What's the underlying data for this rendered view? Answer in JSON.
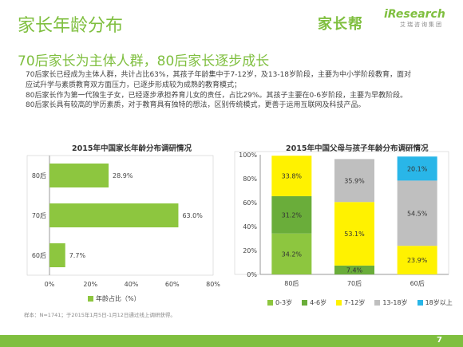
{
  "header": {
    "title": "家长年龄分布",
    "subtitle": "70后家长为主体人群，80后家长逐步成长",
    "logo_brand": "家长帮",
    "logo_ir": "iResearch",
    "logo_ir_sub": "艾瑞咨询集团"
  },
  "description": [
    "70后家长已经成为主体人群，共计占比63%，其孩子年龄集中于7-12岁，及13-18岁阶段，主要为中小学阶段教育，面对",
    "应试升学与素质教育双方面压力，已逐步形成较为成熟的教育模式；",
    "80后家长作为第一代独生子女，已经逐步承担养育儿女的责任，占比29%。其孩子主要在0-6岁阶段，主要为早教阶段。",
    "80后家长具有较高的学历素质，对于教育具有独特的想法，区别传统模式，更善于运用互联网及科技产品。"
  ],
  "footnote": "样本：N=1741；于2015年1月5日-1月12日通过线上调研获得。",
  "page_number": "7",
  "chart_data": [
    {
      "type": "bar",
      "orientation": "horizontal",
      "title": "2015年中国家长年龄分布调研情况",
      "categories": [
        "80后",
        "70后",
        "60后"
      ],
      "values": [
        28.9,
        63.0,
        7.7
      ],
      "value_labels": [
        "28.9%",
        "63.0%",
        "7.7%"
      ],
      "xlim": [
        0,
        80
      ],
      "xticks": [
        "0%",
        "20%",
        "40%",
        "60%",
        "80%"
      ],
      "series_name": "年龄占比（%）",
      "color": "#8dc63f"
    },
    {
      "type": "bar",
      "stacked": true,
      "title": "2015年中国父母与孩子年龄分布调研情况",
      "categories": [
        "80后",
        "70后",
        "60后"
      ],
      "yticks": [
        "0%",
        "20%",
        "40%",
        "60%",
        "80%",
        "100%"
      ],
      "ylim": [
        0,
        100
      ],
      "series": [
        {
          "name": "0-3岁",
          "color": "#8dc63f",
          "values": [
            34.2,
            0,
            0
          ],
          "labels": [
            "34.2%",
            "",
            ""
          ]
        },
        {
          "name": "4-6岁",
          "color": "#6aad3a",
          "values": [
            31.2,
            7.4,
            0
          ],
          "labels": [
            "31.2%",
            "7.4%",
            ""
          ]
        },
        {
          "name": "7-12岁",
          "color": "#fff200",
          "values": [
            33.8,
            53.1,
            23.9
          ],
          "labels": [
            "33.8%",
            "53.1%",
            "23.9%"
          ]
        },
        {
          "name": "13-18岁",
          "color": "#bfbfbf",
          "values": [
            0,
            35.9,
            54.5
          ],
          "labels": [
            "",
            "35.9%",
            "54.5%"
          ]
        },
        {
          "name": "18岁以上",
          "color": "#29b6e8",
          "values": [
            0,
            0,
            20.1
          ],
          "labels": [
            "",
            "",
            "20.1%"
          ]
        }
      ]
    }
  ]
}
